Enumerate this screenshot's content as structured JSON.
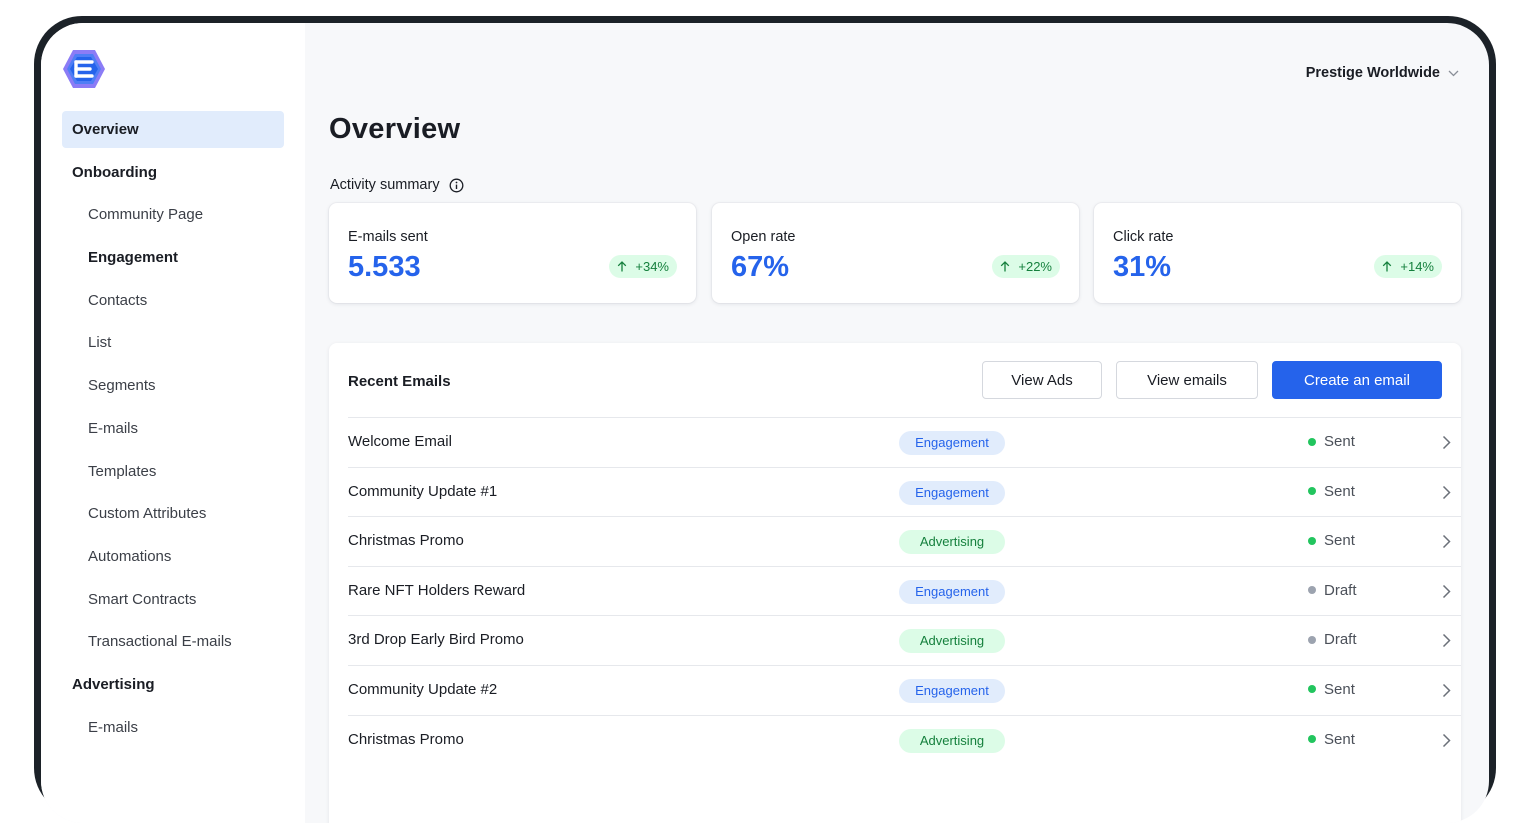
{
  "sidebar": {
    "logo_icon": "hexagon-e-logo",
    "items": [
      {
        "label": "Overview",
        "kind": "section",
        "active": true
      },
      {
        "label": "Onboarding",
        "kind": "section"
      },
      {
        "label": "Community Page",
        "kind": "sub"
      },
      {
        "label": "Engagement",
        "kind": "sub-bold"
      },
      {
        "label": "Contacts",
        "kind": "sub"
      },
      {
        "label": "List",
        "kind": "sub"
      },
      {
        "label": "Segments",
        "kind": "sub"
      },
      {
        "label": "E-mails",
        "kind": "sub"
      },
      {
        "label": "Templates",
        "kind": "sub"
      },
      {
        "label": "Custom Attributes",
        "kind": "sub"
      },
      {
        "label": "Automations",
        "kind": "sub"
      },
      {
        "label": "Smart Contracts",
        "kind": "sub"
      },
      {
        "label": "Transactional E-mails",
        "kind": "sub"
      },
      {
        "label": "Advertising",
        "kind": "section"
      },
      {
        "label": "E-mails",
        "kind": "sub"
      }
    ]
  },
  "header": {
    "org_name": "Prestige Worldwide",
    "org_icon": "chevron-down-icon"
  },
  "main": {
    "title": "Overview",
    "summary_label": "Activity summary",
    "summary_icon": "info-icon",
    "stats": [
      {
        "label": "E-mails sent",
        "value": "5.533",
        "delta": "+34%"
      },
      {
        "label": "Open rate",
        "value": "67%",
        "delta": "+22%"
      },
      {
        "label": "Click rate",
        "value": "31%",
        "delta": "+14%"
      }
    ],
    "recent": {
      "title": "Recent Emails",
      "buttons": {
        "view_ads": "View Ads",
        "view_emails": "View emails",
        "create": "Create an email"
      },
      "rows": [
        {
          "name": "Welcome Email",
          "tag": "Engagement",
          "status": "Sent"
        },
        {
          "name": "Community Update #1",
          "tag": "Engagement",
          "status": "Sent"
        },
        {
          "name": "Christmas Promo",
          "tag": "Advertising",
          "status": "Sent"
        },
        {
          "name": "Rare NFT Holders Reward",
          "tag": "Engagement",
          "status": "Draft"
        },
        {
          "name": "3rd Drop Early Bird Promo",
          "tag": "Advertising",
          "status": "Draft"
        },
        {
          "name": "Community Update #2",
          "tag": "Engagement",
          "status": "Sent"
        },
        {
          "name": "Christmas Promo",
          "tag": "Advertising",
          "status": "Sent"
        }
      ]
    }
  },
  "colors": {
    "accent": "#2563eb",
    "sent_dot": "#22c55e",
    "draft_dot": "#9ca3af",
    "engagement_bg": "#e1ecfc",
    "advertising_bg": "#dcfce7"
  }
}
